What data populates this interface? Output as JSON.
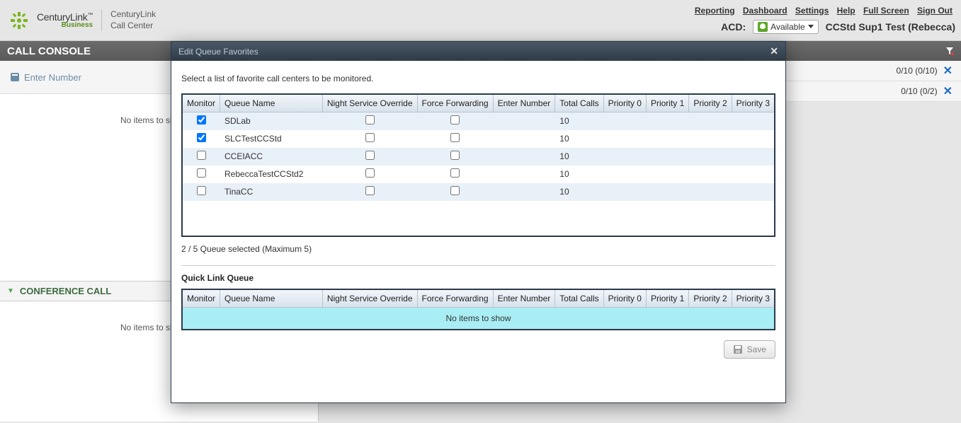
{
  "brand": {
    "name": "CenturyLink",
    "suffix": "Business",
    "app_line1": "CenturyLink",
    "app_line2": "Call Center"
  },
  "top_links": [
    "Reporting",
    "Dashboard",
    "Settings",
    "Help",
    "Full Screen",
    "Sign Out"
  ],
  "acd": {
    "label": "ACD:",
    "status": "Available"
  },
  "user": "CCStd Sup1 Test (Rebecca)",
  "console_title": "CALL CONSOLE",
  "enter_number_label": "Enter Number",
  "no_items": "No items to show",
  "conference_title": "CONFERENCE CALL",
  "stats": [
    {
      "text": "0/10 (0/10)"
    },
    {
      "text": "0/10 (0/2)"
    }
  ],
  "modal": {
    "title": "Edit Queue Favorites",
    "instruction": "Select a list of favorite call centers to be monitored.",
    "columns": [
      "Monitor",
      "Queue Name",
      "Night Service Override",
      "Force Forwarding",
      "Enter Number",
      "Total Calls",
      "Priority 0",
      "Priority 1",
      "Priority 2",
      "Priority 3"
    ],
    "rows": [
      {
        "monitor": true,
        "name": "SDLab",
        "nso": false,
        "ff": false,
        "en": "",
        "tc": "10",
        "p0": "",
        "p1": "",
        "p2": "",
        "p3": ""
      },
      {
        "monitor": true,
        "name": "SLCTestCCStd",
        "nso": false,
        "ff": false,
        "en": "",
        "tc": "10",
        "p0": "",
        "p1": "",
        "p2": "",
        "p3": ""
      },
      {
        "monitor": false,
        "name": "CCEIACC",
        "nso": false,
        "ff": false,
        "en": "",
        "tc": "10",
        "p0": "",
        "p1": "",
        "p2": "",
        "p3": ""
      },
      {
        "monitor": false,
        "name": "RebeccaTestCCStd2",
        "nso": false,
        "ff": false,
        "en": "",
        "tc": "10",
        "p0": "",
        "p1": "",
        "p2": "",
        "p3": ""
      },
      {
        "monitor": false,
        "name": "TinaCC",
        "nso": false,
        "ff": false,
        "en": "",
        "tc": "10",
        "p0": "",
        "p1": "",
        "p2": "",
        "p3": ""
      }
    ],
    "selected_text": "2 / 5 Queue selected (Maximum 5)",
    "quick_link_title": "Quick Link Queue",
    "no_items": "No items to show",
    "save_label": "Save"
  },
  "colors": {
    "page_bg": "#e6e6e6",
    "console_bar": "#5a5a5a",
    "modal_border": "#2b3a4a",
    "row_alt": "#e8f0f8",
    "noitems_bg": "#a8eef4",
    "green": "#5a8f1e",
    "link_blue": "#1b6bbf"
  }
}
